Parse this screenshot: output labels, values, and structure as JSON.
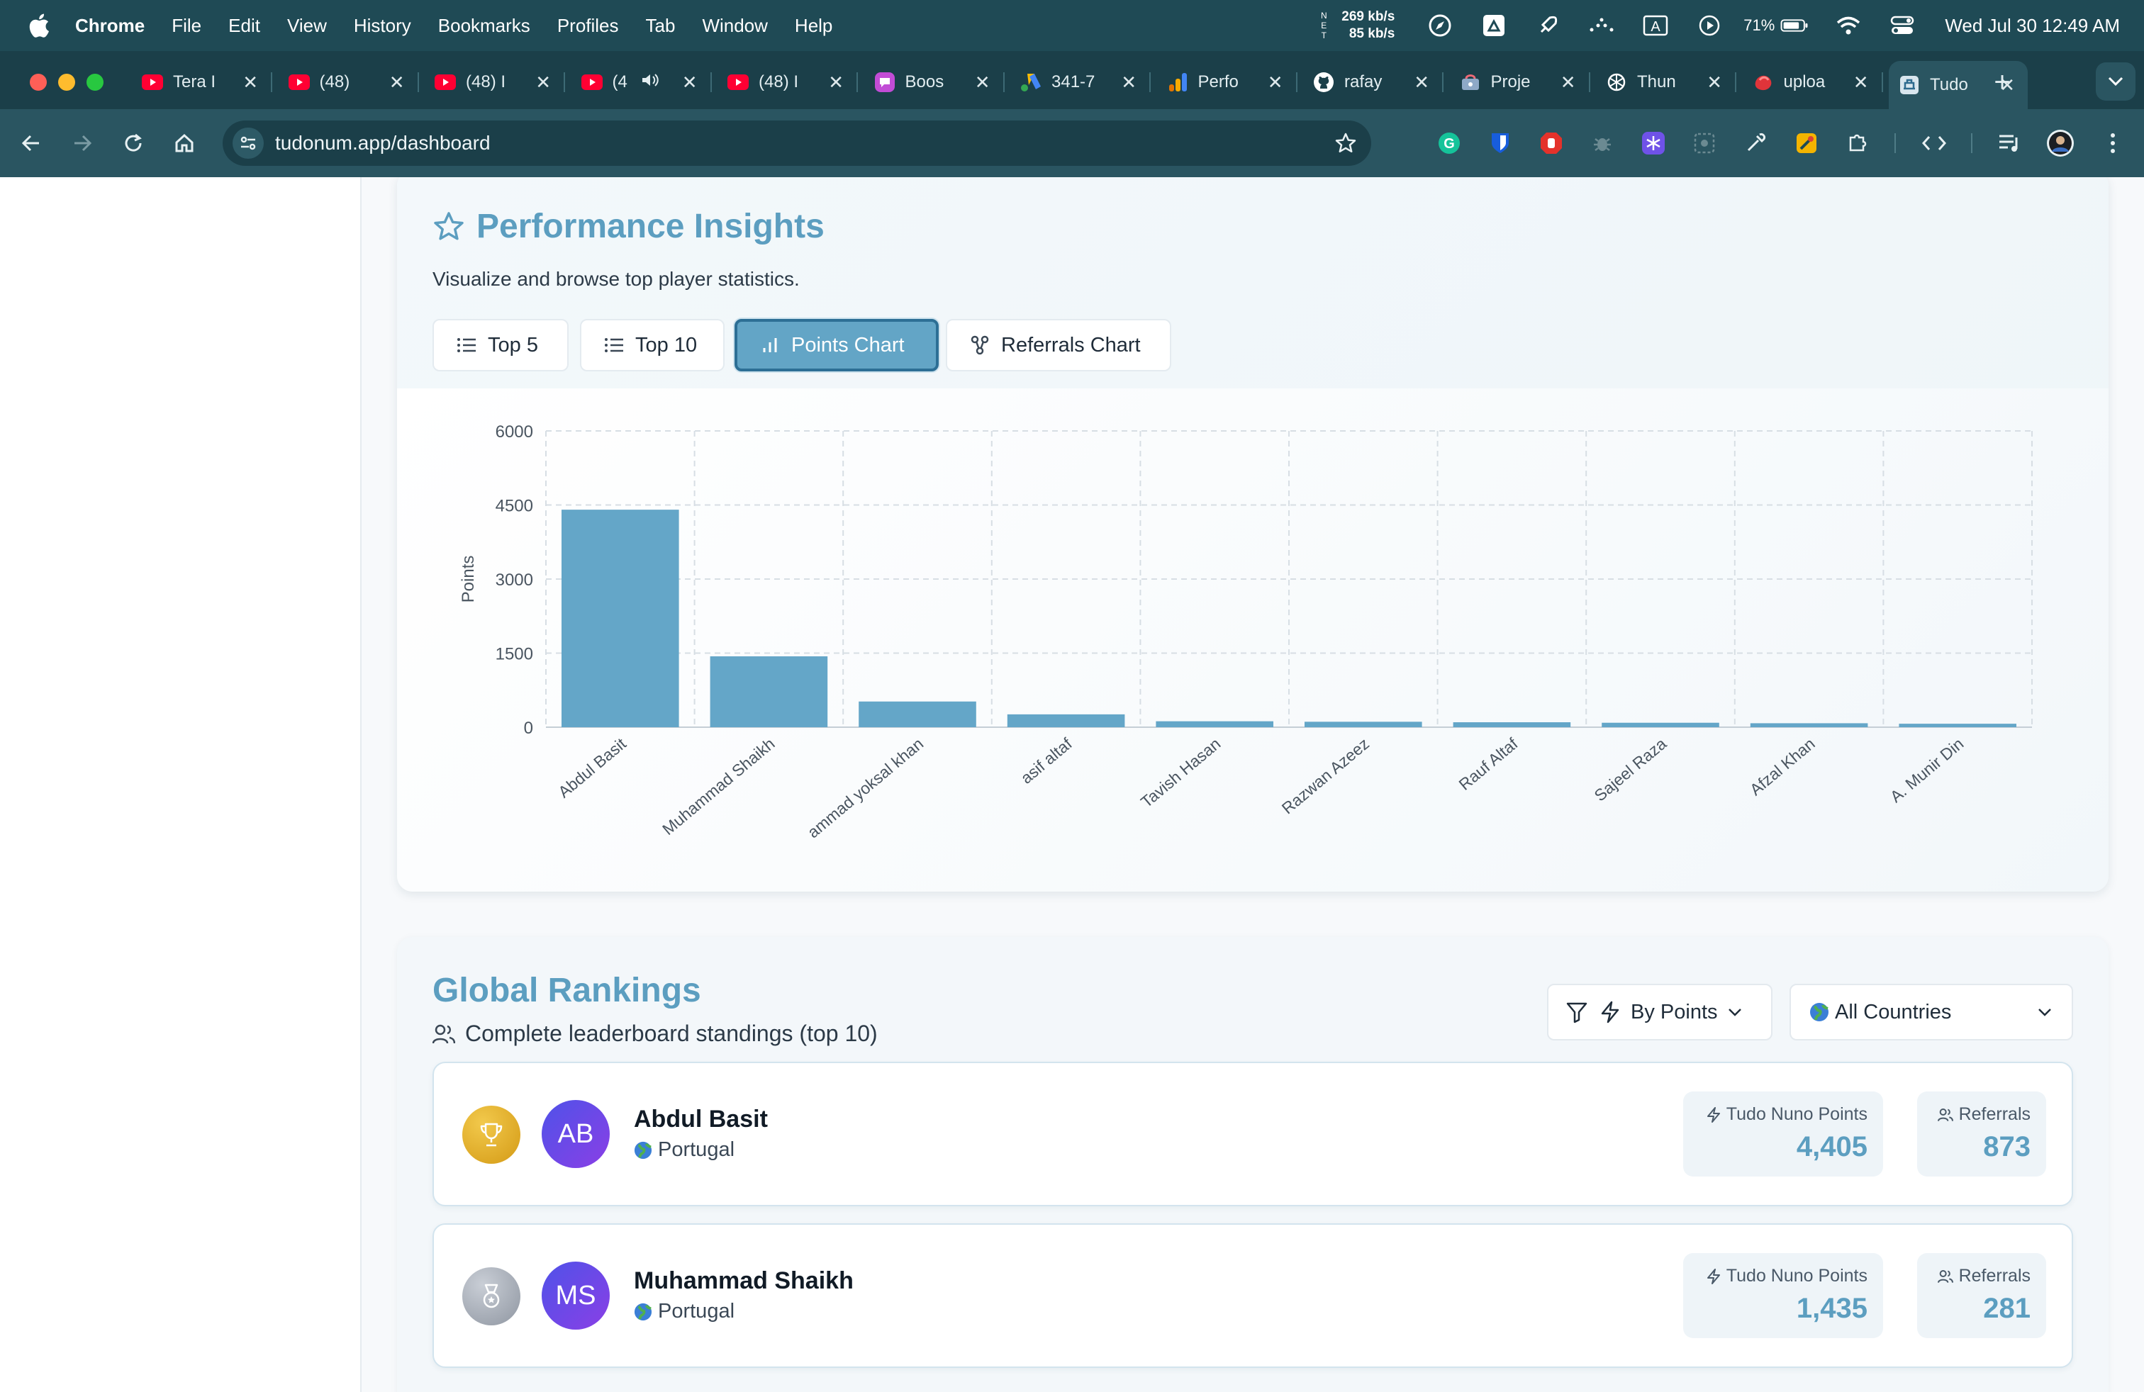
{
  "menubar": {
    "app_name": "Chrome",
    "menus": [
      "File",
      "Edit",
      "View",
      "History",
      "Bookmarks",
      "Profiles",
      "Tab",
      "Window",
      "Help"
    ],
    "net_label": "N\nE\nT",
    "net_up": "269 kb/s",
    "net_down": "85 kb/s",
    "battery": "71%",
    "clock": "Wed Jul 30  12:49 AM"
  },
  "tabs": [
    {
      "title": "Tera I",
      "icon": "youtube-icon"
    },
    {
      "title": "(48) ",
      "icon": "youtube-icon"
    },
    {
      "title": "(48) I",
      "icon": "youtube-icon"
    },
    {
      "title": "(4",
      "icon": "youtube-icon",
      "audio": true
    },
    {
      "title": "(48) I",
      "icon": "youtube-icon"
    },
    {
      "title": "Boos",
      "icon": "chat-bubble-icon"
    },
    {
      "title": "341-7",
      "icon": "google-ads-icon"
    },
    {
      "title": "Perfo",
      "icon": "analytics-icon"
    },
    {
      "title": "rafay",
      "icon": "github-icon"
    },
    {
      "title": "Proje",
      "icon": "project-icon"
    },
    {
      "title": "Thun",
      "icon": "openai-icon"
    },
    {
      "title": "uploa",
      "icon": "upload-icon"
    },
    {
      "title": "Tudo",
      "icon": "tudonum-icon",
      "active": true
    }
  ],
  "address_bar": {
    "url": "tudonum.app/dashboard"
  },
  "performance": {
    "title": "Performance Insights",
    "subtitle": "Visualize and browse top player statistics.",
    "buttons": [
      {
        "label": "Top 5",
        "icon": "list-icon"
      },
      {
        "label": "Top 10",
        "icon": "list-icon"
      },
      {
        "label": "Points Chart",
        "icon": "bar-chart-icon",
        "active": true
      },
      {
        "label": "Referrals Chart",
        "icon": "share-nodes-icon"
      }
    ]
  },
  "chart_data": {
    "type": "bar",
    "ylabel": "Points",
    "ylim": [
      0,
      6000
    ],
    "yticks": [
      0,
      1500,
      3000,
      4500,
      6000
    ],
    "categories": [
      "Abdul Basit",
      "Muhammad Shaikh",
      "ammad yoksal khan",
      "asif altaf",
      "Tavish Hasan",
      "Razwan Azeez",
      "Rauf Altaf",
      "Sajeel Raza",
      "Afzal Khan",
      "A. Munir Din"
    ],
    "values": [
      4405,
      1435,
      520,
      260,
      120,
      110,
      100,
      90,
      80,
      70
    ],
    "bar_color": "#64a6c8",
    "grid": true
  },
  "rankings": {
    "title": "Global Rankings",
    "subtitle": "Complete leaderboard standings (top 10)",
    "sort_label": "By Points",
    "country_label": "All Countries",
    "points_label": "Tudo Nuno Points",
    "referrals_label": "Referrals",
    "players": [
      {
        "initials": "AB",
        "name": "Abdul Basit",
        "country": "Portugal",
        "points": "4,405",
        "referrals": "873",
        "medal": "trophy-icon"
      },
      {
        "initials": "MS",
        "name": "Muhammad Shaikh",
        "country": "Portugal",
        "points": "1,435",
        "referrals": "281",
        "medal": "medal-icon"
      }
    ]
  }
}
